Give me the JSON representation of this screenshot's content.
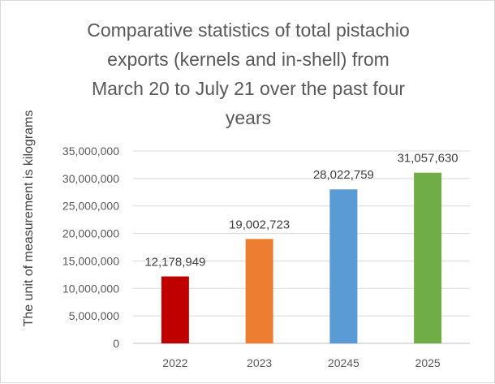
{
  "chart_data": {
    "type": "bar",
    "title_lines": [
      "Comparative statistics of total pistachio",
      "exports (kernels and in-shell) from",
      "March 20 to July 21 over the past four",
      "years"
    ],
    "ylabel": "The unit of measurement is kilograms",
    "xlabel": "",
    "categories": [
      "2022",
      "2023",
      "20245",
      "2025"
    ],
    "values": [
      12178949,
      19002723,
      28022759,
      31057630
    ],
    "data_labels": [
      "12,178,949",
      "19,002,723",
      "28,022,759",
      "31,057,630"
    ],
    "bar_colors": [
      "#c00000",
      "#ed7d31",
      "#5b9bd5",
      "#70ad47"
    ],
    "ylim": [
      0,
      35000000
    ],
    "y_ticks": [
      0,
      5000000,
      10000000,
      15000000,
      20000000,
      25000000,
      30000000,
      35000000
    ],
    "y_tick_labels": [
      "0",
      "5,000,000",
      "10,000,000",
      "15,000,000",
      "20,000,000",
      "25,000,000",
      "30,000,000",
      "35,000,000"
    ],
    "grid": true,
    "legend": "none"
  }
}
